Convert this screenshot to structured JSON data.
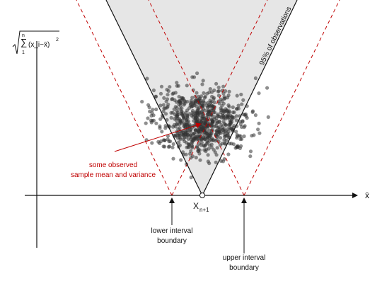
{
  "y_axis": {
    "sum": "∑",
    "upper": "n",
    "lower": "1",
    "term": "(x_i−x̄)",
    "power": "2"
  },
  "x_axis": "x̄",
  "band_label": "95% of observations",
  "annotation": [
    "some observed",
    "sample mean and variance"
  ],
  "next_observation": {
    "main": "X",
    "sub": "n+1"
  },
  "lower_boundary": [
    "lower interval",
    "boundary"
  ],
  "upper_boundary": [
    "upper interval",
    "boundary"
  ]
}
